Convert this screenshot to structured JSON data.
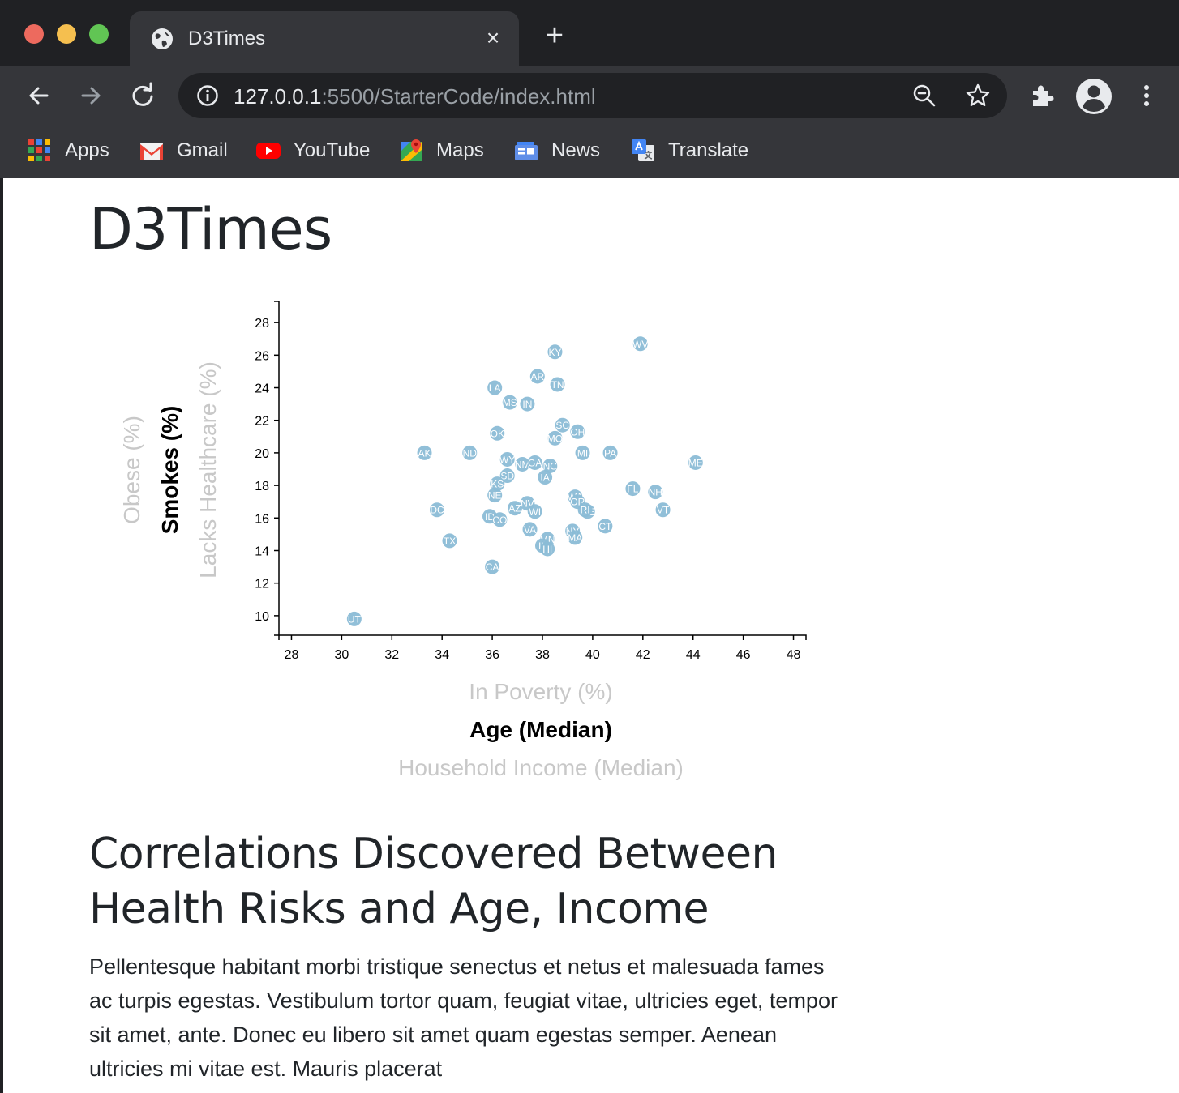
{
  "browser": {
    "tab_title": "D3Times",
    "tab_close": "×",
    "new_tab": "+",
    "url_host": "127.0.0.1",
    "url_rest": ":5500/StarterCode/index.html",
    "bookmarks": [
      {
        "label": "Apps",
        "icon": "apps-grid-icon"
      },
      {
        "label": "Gmail",
        "icon": "gmail-icon"
      },
      {
        "label": "YouTube",
        "icon": "youtube-icon"
      },
      {
        "label": "Maps",
        "icon": "maps-icon"
      },
      {
        "label": "News",
        "icon": "news-icon"
      },
      {
        "label": "Translate",
        "icon": "translate-icon"
      }
    ]
  },
  "page": {
    "title": "D3Times",
    "heading": "Correlations Discovered Between Health Risks and Age, Income",
    "paragraph": "Pellentesque habitant morbi tristique senectus et netus et malesuada fames ac turpis egestas. Vestibulum tortor quam, feugiat vitae, ultricies eget, tempor sit amet, ante. Donec eu libero sit amet quam egestas semper. Aenean ultricies mi vitae est. Mauris placerat"
  },
  "chart_data": {
    "type": "scatter",
    "x_ticks": [
      28,
      30,
      32,
      34,
      36,
      38,
      40,
      42,
      44,
      46,
      48
    ],
    "y_ticks": [
      10,
      12,
      14,
      16,
      18,
      20,
      22,
      24,
      26,
      28
    ],
    "xlim": [
      27.5,
      48.5
    ],
    "ylim": [
      8.8,
      29.3
    ],
    "x_labels": [
      {
        "text": "In Poverty (%)",
        "active": false
      },
      {
        "text": "Age (Median)",
        "active": true
      },
      {
        "text": "Household Income (Median)",
        "active": false
      }
    ],
    "y_labels": [
      {
        "text": "Obese (%)",
        "active": false
      },
      {
        "text": "Smokes (%)",
        "active": true
      },
      {
        "text": "Lacks Healthcare (%)",
        "active": false
      }
    ],
    "point_color": "#8bbcd6",
    "points": [
      {
        "abbr": "WV",
        "x": 41.9,
        "y": 26.7
      },
      {
        "abbr": "KY",
        "x": 38.5,
        "y": 26.2
      },
      {
        "abbr": "AR",
        "x": 37.8,
        "y": 24.7
      },
      {
        "abbr": "TN",
        "x": 38.6,
        "y": 24.2
      },
      {
        "abbr": "LA",
        "x": 36.1,
        "y": 24.0
      },
      {
        "abbr": "MS",
        "x": 36.7,
        "y": 23.1
      },
      {
        "abbr": "IN",
        "x": 37.4,
        "y": 23.0
      },
      {
        "abbr": "SC",
        "x": 38.8,
        "y": 21.7
      },
      {
        "abbr": "OH",
        "x": 39.4,
        "y": 21.3
      },
      {
        "abbr": "OK",
        "x": 36.2,
        "y": 21.2
      },
      {
        "abbr": "MO",
        "x": 38.5,
        "y": 20.9
      },
      {
        "abbr": "AK",
        "x": 33.3,
        "y": 20.0
      },
      {
        "abbr": "ND",
        "x": 35.1,
        "y": 20.0
      },
      {
        "abbr": "MI",
        "x": 39.6,
        "y": 20.0
      },
      {
        "abbr": "PA",
        "x": 40.7,
        "y": 20.0
      },
      {
        "abbr": "ME",
        "x": 44.1,
        "y": 19.4
      },
      {
        "abbr": "WY",
        "x": 36.6,
        "y": 19.6
      },
      {
        "abbr": "NM",
        "x": 37.2,
        "y": 19.3
      },
      {
        "abbr": "GA",
        "x": 37.7,
        "y": 19.4
      },
      {
        "abbr": "NC",
        "x": 38.3,
        "y": 19.2
      },
      {
        "abbr": "IA",
        "x": 38.1,
        "y": 18.5
      },
      {
        "abbr": "SD",
        "x": 36.6,
        "y": 18.6
      },
      {
        "abbr": "KS",
        "x": 36.2,
        "y": 18.1
      },
      {
        "abbr": "FL",
        "x": 41.6,
        "y": 17.8
      },
      {
        "abbr": "NH",
        "x": 42.5,
        "y": 17.6
      },
      {
        "abbr": "NE",
        "x": 36.1,
        "y": 17.4
      },
      {
        "abbr": "WA",
        "x": 39.3,
        "y": 17.3
      },
      {
        "abbr": "OR",
        "x": 39.4,
        "y": 17.0
      },
      {
        "abbr": "NV",
        "x": 37.4,
        "y": 16.9
      },
      {
        "abbr": "VT",
        "x": 42.8,
        "y": 16.5
      },
      {
        "abbr": "DC",
        "x": 33.8,
        "y": 16.5
      },
      {
        "abbr": "AZ",
        "x": 36.9,
        "y": 16.6
      },
      {
        "abbr": "WI",
        "x": 37.7,
        "y": 16.4
      },
      {
        "abbr": "DE",
        "x": 39.8,
        "y": 16.4
      },
      {
        "abbr": "RI",
        "x": 39.7,
        "y": 16.5
      },
      {
        "abbr": "ID",
        "x": 35.9,
        "y": 16.1
      },
      {
        "abbr": "CO",
        "x": 36.3,
        "y": 15.9
      },
      {
        "abbr": "CT",
        "x": 40.5,
        "y": 15.5
      },
      {
        "abbr": "VA",
        "x": 37.5,
        "y": 15.3
      },
      {
        "abbr": "NY",
        "x": 39.2,
        "y": 15.2
      },
      {
        "abbr": "MA",
        "x": 39.3,
        "y": 14.8
      },
      {
        "abbr": "MN",
        "x": 38.2,
        "y": 14.7
      },
      {
        "abbr": "IL",
        "x": 38.0,
        "y": 14.3
      },
      {
        "abbr": "HI",
        "x": 38.2,
        "y": 14.1
      },
      {
        "abbr": "TX",
        "x": 34.3,
        "y": 14.6
      },
      {
        "abbr": "CA",
        "x": 36.0,
        "y": 13.0
      },
      {
        "abbr": "UT",
        "x": 30.5,
        "y": 9.8
      }
    ]
  }
}
